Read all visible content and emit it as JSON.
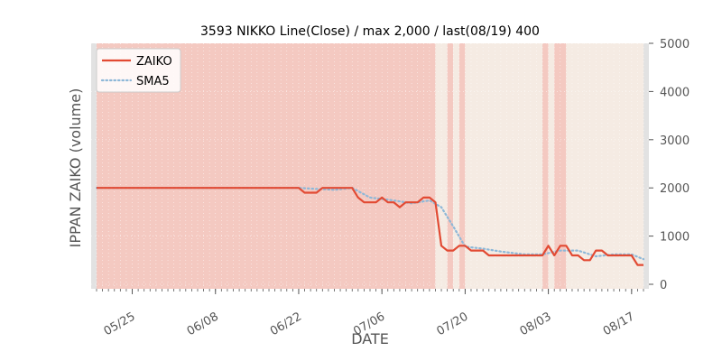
{
  "chart_data": {
    "type": "line",
    "title": "3593 NIKKO Line(Close) / max 2,000 / last(08/19) 400",
    "xlabel": "DATE",
    "ylabel": "IPPAN ZAIKO (volume)",
    "ylim": [
      0,
      5000
    ],
    "yticks": [
      0,
      1000,
      2000,
      3000,
      4000,
      5000
    ],
    "ytick_labels": [
      "0",
      "1000",
      "2000",
      "3000",
      "4000",
      "5000"
    ],
    "x_start": "05/19",
    "x_end": "08/19",
    "xtick_dates": [
      "05/25",
      "06/08",
      "06/22",
      "07/06",
      "07/20",
      "08/03",
      "08/17"
    ],
    "legend_position": "top-left",
    "grid": true,
    "colors": {
      "zaiko": "#e24a33",
      "sma5": "#8eb8d8",
      "band_red": "#f4c9c1",
      "band_light": "#f5ebe3",
      "band_gray": "#e2e2e2"
    },
    "series": [
      {
        "name": "ZAIKO",
        "style": "solid",
        "points": [
          [
            "05/19",
            2000
          ],
          [
            "06/22",
            2000
          ],
          [
            "06/23",
            1900
          ],
          [
            "06/25",
            1900
          ],
          [
            "06/26",
            2000
          ],
          [
            "07/01",
            2000
          ],
          [
            "07/02",
            1800
          ],
          [
            "07/03",
            1700
          ],
          [
            "07/05",
            1700
          ],
          [
            "07/06",
            1800
          ],
          [
            "07/07",
            1700
          ],
          [
            "07/08",
            1700
          ],
          [
            "07/09",
            1600
          ],
          [
            "07/10",
            1700
          ],
          [
            "07/12",
            1700
          ],
          [
            "07/13",
            1800
          ],
          [
            "07/14",
            1800
          ],
          [
            "07/15",
            1700
          ],
          [
            "07/16",
            800
          ],
          [
            "07/17",
            700
          ],
          [
            "07/18",
            700
          ],
          [
            "07/19",
            800
          ],
          [
            "07/20",
            800
          ],
          [
            "07/21",
            700
          ],
          [
            "07/23",
            700
          ],
          [
            "07/24",
            600
          ],
          [
            "08/02",
            600
          ],
          [
            "08/03",
            800
          ],
          [
            "08/04",
            600
          ],
          [
            "08/05",
            800
          ],
          [
            "08/06",
            800
          ],
          [
            "08/07",
            600
          ],
          [
            "08/08",
            600
          ],
          [
            "08/09",
            500
          ],
          [
            "08/10",
            500
          ],
          [
            "08/11",
            700
          ],
          [
            "08/12",
            700
          ],
          [
            "08/13",
            600
          ],
          [
            "08/16",
            600
          ],
          [
            "08/17",
            600
          ],
          [
            "08/18",
            400
          ],
          [
            "08/19",
            400
          ]
        ]
      },
      {
        "name": "SMA5",
        "style": "dotted",
        "points": [
          [
            "05/19",
            2000
          ],
          [
            "06/22",
            2000
          ],
          [
            "06/25",
            1980
          ],
          [
            "06/28",
            1960
          ],
          [
            "07/01",
            2000
          ],
          [
            "07/04",
            1800
          ],
          [
            "07/08",
            1740
          ],
          [
            "07/11",
            1680
          ],
          [
            "07/14",
            1740
          ],
          [
            "07/16",
            1600
          ],
          [
            "07/18",
            1200
          ],
          [
            "07/20",
            780
          ],
          [
            "07/23",
            740
          ],
          [
            "07/26",
            680
          ],
          [
            "07/30",
            620
          ],
          [
            "08/02",
            620
          ],
          [
            "08/05",
            700
          ],
          [
            "08/08",
            700
          ],
          [
            "08/11",
            580
          ],
          [
            "08/14",
            620
          ],
          [
            "08/17",
            620
          ],
          [
            "08/19",
            520
          ]
        ]
      }
    ],
    "bands": [
      [
        "05/19",
        "05/19",
        "gray"
      ],
      [
        "05/19",
        "07/15",
        "red"
      ],
      [
        "07/15",
        "07/17",
        "light"
      ],
      [
        "07/17",
        "07/18",
        "red"
      ],
      [
        "07/18",
        "07/19",
        "light"
      ],
      [
        "07/19",
        "07/20",
        "red"
      ],
      [
        "07/20",
        "08/02",
        "light"
      ],
      [
        "08/02",
        "08/03",
        "red"
      ],
      [
        "08/03",
        "08/04",
        "light"
      ],
      [
        "08/04",
        "08/06",
        "red"
      ],
      [
        "08/06",
        "08/19",
        "light"
      ],
      [
        "08/19",
        "08/19",
        "gray"
      ]
    ]
  }
}
